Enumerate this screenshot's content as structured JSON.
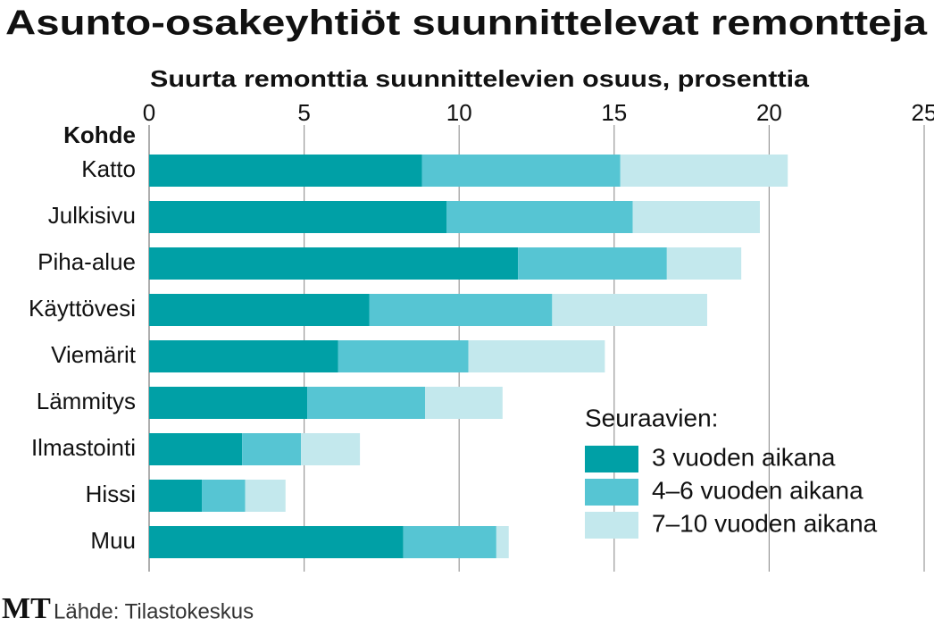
{
  "chart_data": {
    "type": "stacked-bar-horizontal",
    "title": "Asunto-osakeyhtiöt suunnittelevat remontteja",
    "x_axis_label": "Suurta remonttia suunnittelevien osuus, prosenttia",
    "category_header": "Kohde",
    "categories": [
      "Katto",
      "Julkisivu",
      "Piha-alue",
      "Käyttövesi",
      "Viemärit",
      "Lämmitys",
      "Ilmastointi",
      "Hissi",
      "Muu"
    ],
    "series": [
      {
        "name": "3 vuoden aikana",
        "color": "#00a0a6",
        "values": [
          8.8,
          9.6,
          11.9,
          7.1,
          6.1,
          5.1,
          3.0,
          1.7,
          8.2
        ]
      },
      {
        "name": "4–6 vuoden aikana",
        "color": "#56c5d3",
        "values": [
          6.4,
          6.0,
          4.8,
          5.9,
          4.2,
          3.8,
          1.9,
          1.4,
          3.0
        ]
      },
      {
        "name": "7–10 vuoden aikana",
        "color": "#c3e8ed",
        "values": [
          5.4,
          4.1,
          2.4,
          5.0,
          4.4,
          2.5,
          1.9,
          1.3,
          0.4
        ]
      }
    ],
    "xlim": [
      0,
      25
    ],
    "xticks": [
      0,
      5,
      10,
      15,
      20,
      25
    ],
    "grid": true,
    "legend": "lower right",
    "legend_title": "Seuraavien:",
    "source": "Lähde: Tilastokeskus",
    "logo": "MT"
  }
}
